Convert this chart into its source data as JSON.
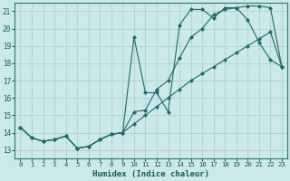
{
  "xlabel": "Humidex (Indice chaleur)",
  "xlim": [
    -0.5,
    23.5
  ],
  "ylim": [
    12.5,
    21.5
  ],
  "xticks": [
    0,
    1,
    2,
    3,
    4,
    5,
    6,
    7,
    8,
    9,
    10,
    11,
    12,
    13,
    14,
    15,
    16,
    17,
    18,
    19,
    20,
    21,
    22,
    23
  ],
  "yticks": [
    13,
    14,
    15,
    16,
    17,
    18,
    19,
    20,
    21
  ],
  "background_color": "#cce8e8",
  "grid_color": "#aacccc",
  "line_color": "#1e6b6b",
  "line1_x": [
    0,
    1,
    2,
    3,
    4,
    5,
    6,
    7,
    8,
    9,
    10,
    11,
    12,
    13,
    14,
    15,
    16,
    17,
    18,
    19,
    20,
    21,
    22,
    23
  ],
  "line1_y": [
    14.3,
    13.7,
    13.5,
    13.6,
    13.8,
    13.1,
    13.2,
    13.6,
    13.9,
    14.0,
    19.5,
    16.3,
    16.3,
    15.2,
    20.2,
    21.1,
    21.1,
    20.6,
    21.2,
    21.2,
    20.5,
    19.2,
    18.2,
    17.8
  ],
  "line2_x": [
    0,
    1,
    2,
    3,
    4,
    5,
    6,
    7,
    8,
    9,
    10,
    11,
    12,
    13,
    14,
    15,
    16,
    17,
    18,
    19,
    20,
    21,
    22,
    23
  ],
  "line2_y": [
    14.3,
    13.7,
    13.5,
    13.6,
    13.8,
    13.1,
    13.2,
    13.6,
    13.9,
    14.0,
    15.2,
    15.3,
    16.5,
    17.0,
    18.3,
    19.5,
    20.0,
    20.8,
    21.1,
    21.2,
    21.3,
    21.3,
    21.2,
    17.8
  ],
  "line3_x": [
    0,
    1,
    2,
    3,
    4,
    5,
    6,
    7,
    8,
    9,
    10,
    11,
    12,
    13,
    14,
    15,
    16,
    17,
    18,
    19,
    20,
    21,
    22,
    23
  ],
  "line3_y": [
    14.3,
    13.7,
    13.5,
    13.6,
    13.8,
    13.1,
    13.2,
    13.6,
    13.9,
    14.0,
    14.5,
    15.0,
    15.5,
    16.0,
    16.5,
    17.0,
    17.4,
    17.8,
    18.2,
    18.6,
    19.0,
    19.4,
    19.8,
    17.8
  ]
}
